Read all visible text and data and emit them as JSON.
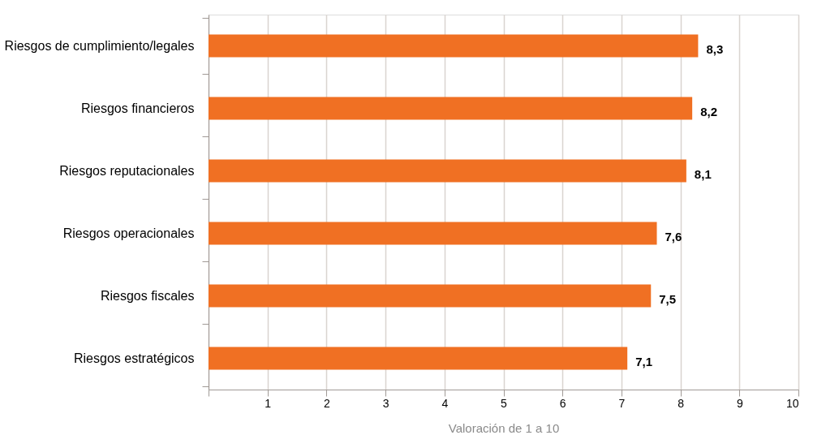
{
  "chart_data": {
    "type": "bar",
    "orientation": "horizontal",
    "xlabel": "Valoración de 1 a 10",
    "categories": [
      "Riesgos de cumplimiento/legales",
      "Riesgos financieros",
      "Riesgos reputacionales",
      "Riesgos operacionales",
      "Riesgos fiscales",
      "Riesgos estratégicos"
    ],
    "values": [
      8.3,
      8.2,
      8.1,
      7.6,
      7.5,
      7.1
    ],
    "value_labels": [
      "8,3",
      "8,2",
      "8,1",
      "7,6",
      "7,5",
      "7,1"
    ],
    "color": "#f07023",
    "xlim": [
      0,
      10
    ],
    "xticks": [
      {
        "value": 0,
        "label": null
      },
      1,
      2,
      3,
      4,
      5,
      6,
      7,
      8,
      9,
      10
    ],
    "grid": "x"
  }
}
